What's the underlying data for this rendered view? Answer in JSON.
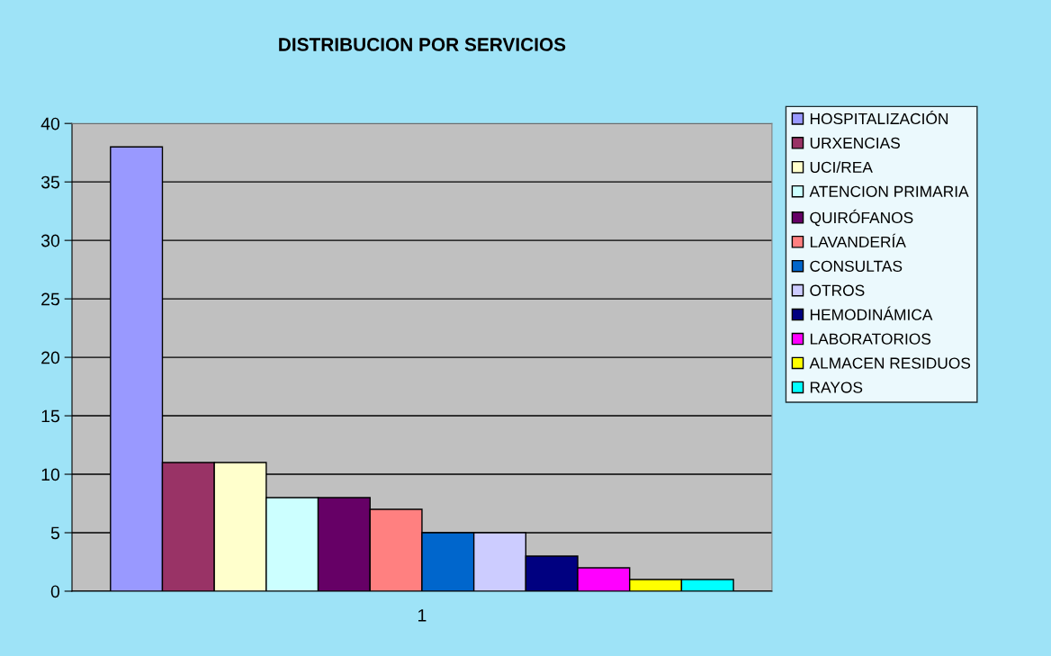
{
  "chart_data": {
    "type": "bar",
    "title": "DISTRIBUCION POR SERVICIOS",
    "categories": [
      "1"
    ],
    "series": [
      {
        "name": "HOSPITALIZACIÓN",
        "color": "#9999ff",
        "values": [
          38
        ]
      },
      {
        "name": "URXENCIAS",
        "color": "#993366",
        "values": [
          11
        ]
      },
      {
        "name": "UCI/REA",
        "color": "#ffffcc",
        "values": [
          11
        ]
      },
      {
        "name": "ATENCION PRIMARIA",
        "color": "#ccffff",
        "values": [
          8
        ]
      },
      {
        "name": "QUIRÓFANOS",
        "color": "#660066",
        "values": [
          8
        ]
      },
      {
        "name": "LAVANDERÍA",
        "color": "#ff8080",
        "values": [
          7
        ]
      },
      {
        "name": "CONSULTAS",
        "color": "#0066cc",
        "values": [
          5
        ]
      },
      {
        "name": "OTROS",
        "color": "#ccccff",
        "values": [
          5
        ]
      },
      {
        "name": "HEMODINÁMICA",
        "color": "#000080",
        "values": [
          3
        ]
      },
      {
        "name": "LABORATORIOS",
        "color": "#ff00ff",
        "values": [
          2
        ]
      },
      {
        "name": "ALMACEN RESIDUOS",
        "color": "#ffff00",
        "values": [
          1
        ]
      },
      {
        "name": "RAYOS",
        "color": "#00ffff",
        "values": [
          1
        ]
      }
    ],
    "ylim": [
      0,
      40
    ],
    "yticks": [
      0,
      5,
      10,
      15,
      20,
      25,
      30,
      35,
      40
    ],
    "grid": "y",
    "legend": "right"
  }
}
